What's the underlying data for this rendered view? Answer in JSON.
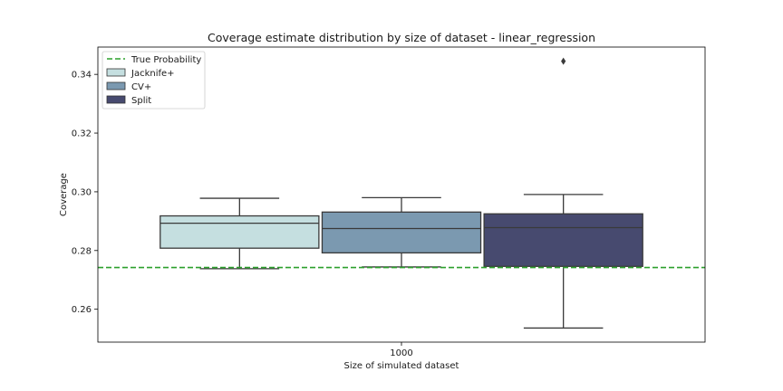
{
  "chart_data": {
    "type": "box",
    "title": "Coverage estimate distribution by size of dataset - linear_regression",
    "xlabel": "Size of simulated dataset",
    "ylabel": "Coverage",
    "categories": [
      "1000"
    ],
    "ylim": [
      0.2488,
      0.3493
    ],
    "yticks": [
      "0.26",
      "0.28",
      "0.30",
      "0.32",
      "0.34"
    ],
    "reference_line": {
      "name": "True Probability",
      "value": 0.2742,
      "color": "#2ca02c"
    },
    "legend_position": "top-left",
    "series": [
      {
        "name": "Jacknife+",
        "color": "#c5dfe0",
        "whisker_low": 0.2738,
        "q1": 0.2808,
        "median": 0.2893,
        "q3": 0.2918,
        "whisker_high": 0.2978,
        "outliers": []
      },
      {
        "name": "CV+",
        "color": "#7b99b0",
        "whisker_low": 0.2744,
        "q1": 0.2792,
        "median": 0.2875,
        "q3": 0.2931,
        "whisker_high": 0.298,
        "outliers": []
      },
      {
        "name": "Split",
        "color": "#474a6f",
        "whisker_low": 0.2536,
        "q1": 0.2746,
        "median": 0.2878,
        "q3": 0.2925,
        "whisker_high": 0.2991,
        "outliers": [
          0.3445
        ]
      }
    ]
  }
}
